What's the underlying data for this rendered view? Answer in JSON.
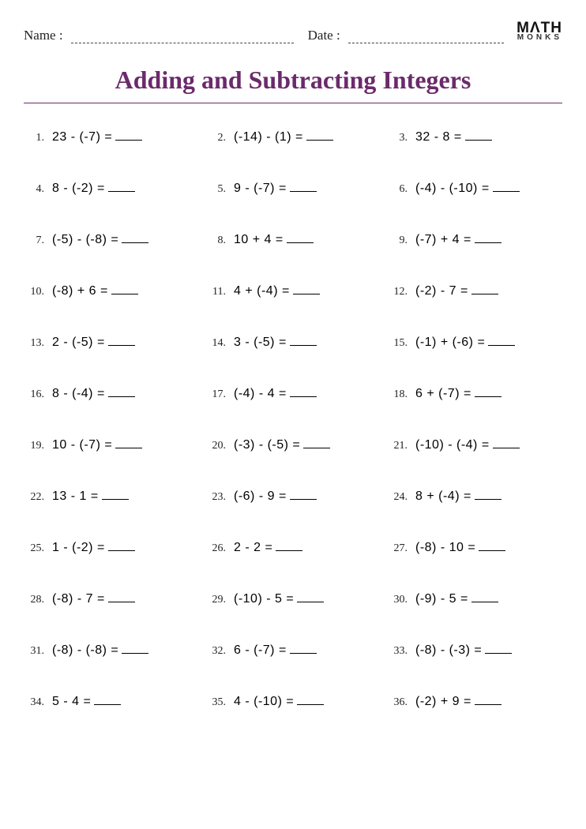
{
  "header": {
    "name_label": "Name :",
    "date_label": "Date :",
    "logo_top": "MΛTH",
    "logo_bottom": "MONKS"
  },
  "title": {
    "text": "Adding and Subtracting Integers",
    "color": "#6b2a6b",
    "fontsize": 32
  },
  "worksheet": {
    "columns": 3,
    "problems": [
      {
        "n": "1.",
        "expr": "23  -  (-7)  ="
      },
      {
        "n": "2.",
        "expr": "(-14)  -  (1)  ="
      },
      {
        "n": "3.",
        "expr": "32  -  8  ="
      },
      {
        "n": "4.",
        "expr": "8  -  (-2)  ="
      },
      {
        "n": "5.",
        "expr": "9  -  (-7)  ="
      },
      {
        "n": "6.",
        "expr": "(-4)  -  (-10)  ="
      },
      {
        "n": "7.",
        "expr": "(-5)  -  (-8)  ="
      },
      {
        "n": "8.",
        "expr": "10  +  4  ="
      },
      {
        "n": "9.",
        "expr": "(-7)  +  4  ="
      },
      {
        "n": "10.",
        "expr": "(-8)  +  6  ="
      },
      {
        "n": "11.",
        "expr": "4  +  (-4)  ="
      },
      {
        "n": "12.",
        "expr": "(-2)  -  7  ="
      },
      {
        "n": "13.",
        "expr": "2  -  (-5)  ="
      },
      {
        "n": "14.",
        "expr": "3  -  (-5)  ="
      },
      {
        "n": "15.",
        "expr": "(-1)  +  (-6)  ="
      },
      {
        "n": "16.",
        "expr": "8  -  (-4)  ="
      },
      {
        "n": "17.",
        "expr": "(-4)  -  4  ="
      },
      {
        "n": "18.",
        "expr": "6  +  (-7)  ="
      },
      {
        "n": "19.",
        "expr": "10  -  (-7)  ="
      },
      {
        "n": "20.",
        "expr": "(-3)  -  (-5)  ="
      },
      {
        "n": "21.",
        "expr": "(-10)  -  (-4)  ="
      },
      {
        "n": "22.",
        "expr": "13  -  1  ="
      },
      {
        "n": "23.",
        "expr": "(-6)  -  9  ="
      },
      {
        "n": "24.",
        "expr": "8  +  (-4)  ="
      },
      {
        "n": "25.",
        "expr": "1  -  (-2)  ="
      },
      {
        "n": "26.",
        "expr": "2  -  2  ="
      },
      {
        "n": "27.",
        "expr": "(-8)  -  10  ="
      },
      {
        "n": "28.",
        "expr": "(-8)  -  7  ="
      },
      {
        "n": "29.",
        "expr": "(-10)  -  5  ="
      },
      {
        "n": "30.",
        "expr": "(-9)  -  5  ="
      },
      {
        "n": "31.",
        "expr": "(-8)  -  (-8)  ="
      },
      {
        "n": "32.",
        "expr": "6  -  (-7)  ="
      },
      {
        "n": "33.",
        "expr": "(-8)  -  (-3)  ="
      },
      {
        "n": "34.",
        "expr": "5  -  4  ="
      },
      {
        "n": "35.",
        "expr": "4  -  (-10)  ="
      },
      {
        "n": "36.",
        "expr": "(-2)  +  9  ="
      }
    ]
  },
  "colors": {
    "background": "#ffffff",
    "text": "#000000",
    "rule": "#6b2a6b"
  }
}
